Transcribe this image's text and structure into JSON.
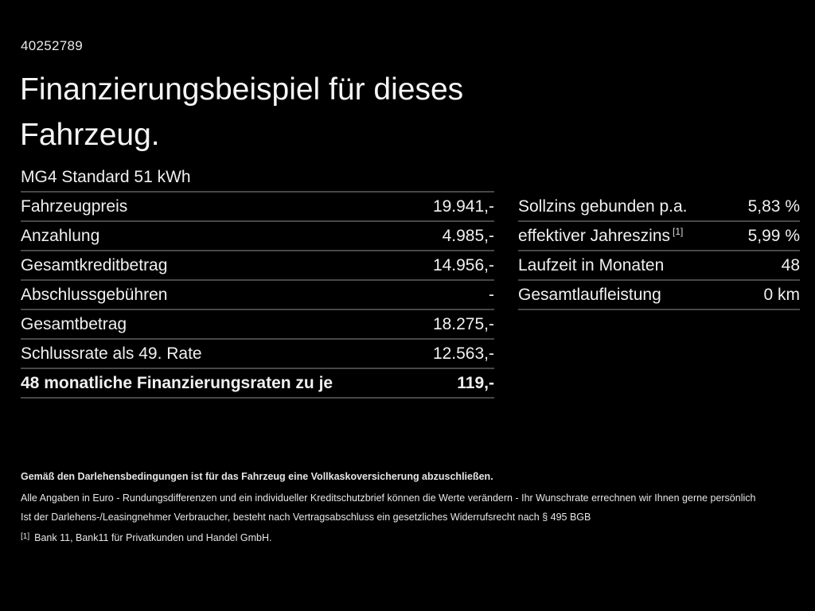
{
  "header": {
    "vehicle_id": "40252789",
    "title_line1": "Finanzierungsbeispiel für dieses",
    "title_line2": "Fahrzeug.",
    "model": "MG4 Standard 51 kWh"
  },
  "financing_table": {
    "rows": [
      {
        "label": "Fahrzeugpreis",
        "value": "19.941,-"
      },
      {
        "label": "Anzahlung",
        "value": "4.985,-"
      },
      {
        "label": "Gesamtkreditbetrag",
        "value": "14.956,-"
      },
      {
        "label": "Abschlussgebühren",
        "value": "-"
      },
      {
        "label": "Gesamtbetrag",
        "value": "18.275,-"
      },
      {
        "label": "Schlussrate als 49. Rate",
        "value": "12.563,-"
      },
      {
        "label": "48 monatliche Finanzierungsraten zu je",
        "value": "119,-"
      }
    ]
  },
  "conditions_table": {
    "rows": [
      {
        "label": "Sollzins gebunden p.a.",
        "sup": "",
        "value": "5,83 %"
      },
      {
        "label": "effektiver Jahreszins",
        "sup": "[1]",
        "value": "5,99 %"
      },
      {
        "label": "Laufzeit in Monaten",
        "sup": "",
        "value": "48"
      },
      {
        "label": "Gesamtlaufleistung",
        "sup": "",
        "value": "0 km"
      }
    ]
  },
  "footer": {
    "insurance_note": "Gemäß den Darlehensbedingungen ist für das Fahrzeug eine Vollkaskoversicherung abzuschließen.",
    "disclaimer": "Alle Angaben in Euro - Rundungsdifferenzen und ein individueller Kreditschutzbrief können die Werte verändern - Ihr Wunschrate errechnen wir Ihnen gerne persönlich",
    "withdrawal_note": "Ist der Darlehens-/Leasingnehmer Verbraucher, besteht nach Vertragsabschluss ein gesetzliches Widerrufsrecht nach § 495 BGB",
    "footnote_marker": "[1]",
    "footnote_text": "Bank 11, Bank11 für Privatkunden und Handel GmbH."
  },
  "colors": {
    "background": "#000000",
    "text": "#f2f2f2",
    "divider": "#474747"
  }
}
